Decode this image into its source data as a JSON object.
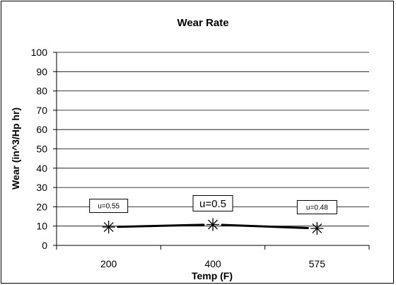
{
  "chart_data": {
    "type": "line",
    "title": "Wear Rate",
    "xlabel": "Temp (F)",
    "ylabel": "Wear (in^3/Hp hr)",
    "categories": [
      "200",
      "400",
      "575"
    ],
    "series": [
      {
        "values": [
          9.5,
          10.8,
          8.8
        ],
        "color": "#000000",
        "marker": "asterisk"
      }
    ],
    "annotations": [
      "u=0.55",
      "u=0.5",
      "u=0.48"
    ],
    "ylim": [
      0,
      100
    ],
    "yticks": [
      "0",
      "10",
      "20",
      "30",
      "40",
      "50",
      "60",
      "70",
      "80",
      "90",
      "100"
    ],
    "grid": true,
    "legend": "none"
  }
}
